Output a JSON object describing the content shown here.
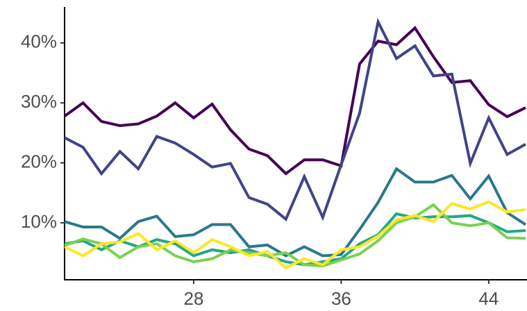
{
  "chart_data": {
    "type": "line",
    "x": [
      21,
      22,
      23,
      24,
      25,
      26,
      27,
      28,
      29,
      30,
      31,
      32,
      33,
      34,
      35,
      36,
      37,
      38,
      39,
      40,
      41,
      42,
      43,
      44,
      45,
      46
    ],
    "series": [
      {
        "color": "#440154",
        "values": [
          27.8,
          30.0,
          26.9,
          26.2,
          26.5,
          27.8,
          30.0,
          27.5,
          29.8,
          25.5,
          22.3,
          21.2,
          18.2,
          20.5,
          20.5,
          19.5,
          36.5,
          40.3,
          39.7,
          42.5,
          37.7,
          33.4,
          33.7,
          29.7,
          27.7,
          29.2
        ]
      },
      {
        "color": "#414487",
        "values": [
          24.2,
          22.6,
          18.2,
          21.9,
          19.0,
          24.4,
          23.3,
          21.4,
          19.3,
          19.9,
          14.2,
          13.1,
          10.6,
          17.7,
          10.9,
          19.7,
          28.3,
          43.5,
          37.4,
          39.5,
          34.5,
          34.8,
          19.9,
          27.5,
          21.4,
          23.1
        ]
      },
      {
        "color": "#2a788e",
        "values": [
          10.2,
          9.3,
          9.3,
          7.4,
          10.2,
          11.1,
          7.7,
          8.0,
          9.7,
          9.7,
          6.0,
          6.3,
          4.5,
          6.0,
          4.5,
          4.7,
          8.9,
          13.4,
          19.0,
          16.8,
          16.8,
          17.9,
          14.0,
          17.8,
          11.7,
          9.7
        ]
      },
      {
        "color": "#22a884",
        "values": [
          6.5,
          7.0,
          5.5,
          7.0,
          6.0,
          7.2,
          6.5,
          4.5,
          5.5,
          5.0,
          5.5,
          4.5,
          3.5,
          3.0,
          3.5,
          4.0,
          6.5,
          8.0,
          11.5,
          10.8,
          11.0,
          11.0,
          11.2,
          10.0,
          8.5,
          8.7
        ]
      },
      {
        "color": "#7ad151",
        "values": [
          6.2,
          7.3,
          6.5,
          4.2,
          6.0,
          6.5,
          4.5,
          3.5,
          4.0,
          5.5,
          5.0,
          4.5,
          5.0,
          3.0,
          2.8,
          3.8,
          4.8,
          7.0,
          10.0,
          11.0,
          13.0,
          10.0,
          9.5,
          10.0,
          7.5,
          7.4
        ]
      },
      {
        "color": "#fde725",
        "values": [
          6.0,
          4.5,
          6.5,
          6.8,
          8.2,
          5.5,
          7.0,
          5.0,
          7.2,
          6.0,
          4.5,
          5.2,
          2.5,
          4.0,
          3.0,
          5.5,
          6.0,
          7.8,
          10.5,
          11.2,
          10.2,
          13.2,
          12.3,
          13.5,
          11.8,
          12.2
        ]
      }
    ],
    "xlim": [
      21,
      46
    ],
    "xticks": [
      28,
      36,
      44
    ],
    "ylim": [
      0.5,
      46
    ],
    "yticks": [
      {
        "value": 10,
        "label": "10%"
      },
      {
        "value": 20,
        "label": "20%"
      },
      {
        "value": 30,
        "label": "30%"
      },
      {
        "value": 40,
        "label": "40%"
      }
    ]
  }
}
